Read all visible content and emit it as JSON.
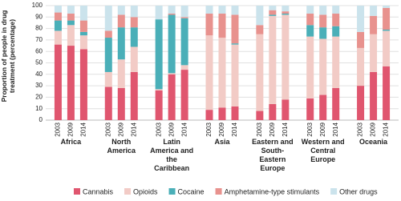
{
  "chart_data": {
    "type": "stacked_bar",
    "y_label": "Proportion of people in drug treatment (percentage)",
    "groups": [
      "Africa",
      "North America",
      "Latin America and the Caribbean",
      "Asia",
      "Eastern and South-Eastern Europe",
      "Western and Central Europe",
      "Oceania"
    ],
    "categories": [
      "2003",
      "2009",
      "2014",
      "2003",
      "2009",
      "2014",
      "2003",
      "2009",
      "2014",
      "2003",
      "2009",
      "2014",
      "2003",
      "2009",
      "2014",
      "2003",
      "2009",
      "2014",
      "2003",
      "2009",
      "2014"
    ],
    "series": [
      {
        "name": "Cannabis",
        "color": "#e0566f",
        "values": [
          66,
          65,
          62,
          29,
          28,
          42,
          26,
          40,
          44,
          9,
          11,
          12,
          8,
          14,
          18,
          19,
          22,
          28,
          30,
          42,
          47
        ]
      },
      {
        "name": "Opioids",
        "color": "#f2cbc6",
        "values": [
          12,
          18,
          12,
          13,
          25,
          22,
          1,
          1,
          4,
          65,
          61,
          54,
          67,
          77,
          74,
          54,
          49,
          45,
          33,
          33,
          31
        ]
      },
      {
        "name": "Cocaine",
        "color": "#4aafb8",
        "values": [
          9,
          4,
          3,
          30,
          28,
          17,
          61,
          51,
          41,
          0,
          0,
          1,
          0,
          1,
          1,
          10,
          10,
          9,
          0,
          0,
          1
        ]
      },
      {
        "name": "Amphetamine-type stimulants",
        "color": "#e8928e",
        "values": [
          7,
          6,
          10,
          6,
          11,
          9,
          0,
          1,
          1,
          19,
          21,
          25,
          8,
          4,
          2,
          10,
          11,
          11,
          14,
          16,
          19
        ]
      },
      {
        "name": "Other drugs",
        "color": "#cbe3ec",
        "values": [
          6,
          7,
          13,
          22,
          8,
          10,
          12,
          7,
          10,
          7,
          7,
          8,
          17,
          4,
          5,
          7,
          8,
          7,
          23,
          9,
          2
        ]
      }
    ],
    "ylim": [
      0,
      100
    ],
    "yticks": [
      0,
      10,
      20,
      30,
      40,
      50,
      60,
      70,
      80,
      90,
      100
    ],
    "grid": true
  }
}
